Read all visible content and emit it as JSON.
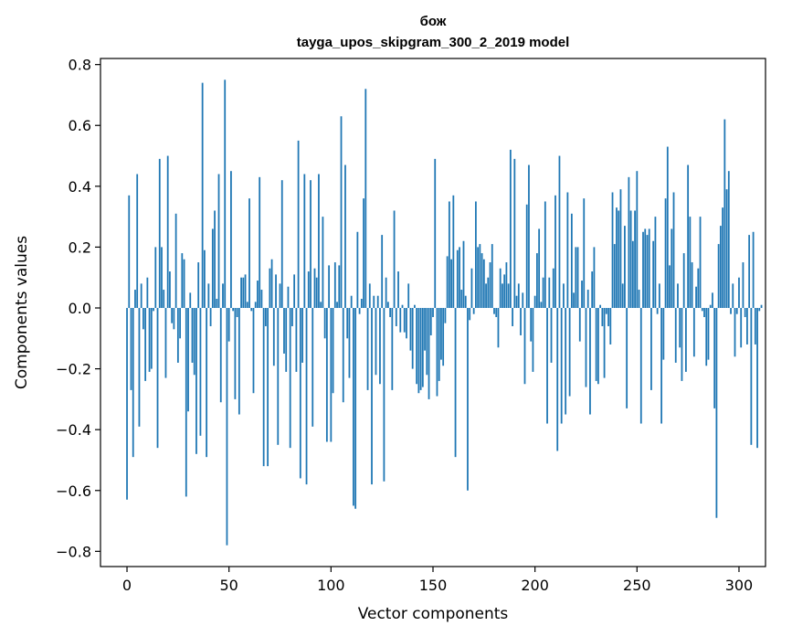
{
  "chart_data": {
    "type": "bar",
    "title": "бож",
    "subtitle": "tayga_upos_skipgram_300_2_2019 model",
    "xlabel": "Vector components",
    "ylabel": "Components values",
    "xlim": [
      -13,
      313
    ],
    "ylim": [
      -0.85,
      0.82
    ],
    "xticks": [
      0,
      50,
      100,
      150,
      200,
      250,
      300
    ],
    "yticks": [
      -0.8,
      -0.6,
      -0.4,
      -0.2,
      0.0,
      0.2,
      0.4,
      0.6,
      0.8
    ],
    "ytick_labels": [
      "−0.8",
      "−0.6",
      "−0.4",
      "−0.2",
      "0.0",
      "0.2",
      "0.4",
      "0.6",
      "0.8"
    ],
    "xtick_labels": [
      "0",
      "50",
      "100",
      "150",
      "200",
      "250",
      "300"
    ],
    "grid": false,
    "bar_color": "#1f77b4",
    "values": [
      -0.63,
      0.37,
      -0.27,
      -0.49,
      0.06,
      0.44,
      -0.39,
      0.08,
      -0.07,
      -0.24,
      0.1,
      -0.21,
      -0.2,
      -0.01,
      0.2,
      -0.46,
      0.49,
      0.2,
      0.06,
      -0.23,
      0.5,
      0.12,
      -0.05,
      -0.07,
      0.31,
      -0.18,
      -0.1,
      0.18,
      0.16,
      -0.62,
      -0.34,
      0.05,
      -0.18,
      -0.22,
      -0.48,
      0.15,
      -0.42,
      0.74,
      0.19,
      -0.49,
      0.08,
      -0.06,
      0.26,
      0.32,
      0.03,
      0.44,
      -0.31,
      0.08,
      0.75,
      -0.78,
      -0.11,
      0.45,
      -0.01,
      -0.3,
      -0.03,
      -0.35,
      0.1,
      0.1,
      0.11,
      0.02,
      0.36,
      -0.01,
      -0.28,
      0.02,
      0.09,
      0.43,
      0.06,
      -0.52,
      -0.06,
      -0.52,
      0.13,
      0.16,
      -0.19,
      0.11,
      -0.45,
      0.08,
      0.42,
      -0.15,
      -0.21,
      0.07,
      -0.46,
      -0.06,
      0.11,
      -0.21,
      0.55,
      -0.56,
      -0.18,
      0.44,
      -0.58,
      0.12,
      0.42,
      -0.39,
      0.13,
      0.1,
      0.44,
      0.02,
      0.3,
      -0.1,
      -0.44,
      0.14,
      -0.44,
      -0.28,
      0.15,
      0.02,
      0.14,
      0.63,
      -0.31,
      0.47,
      -0.1,
      -0.23,
      0.04,
      -0.65,
      -0.66,
      0.25,
      -0.02,
      0.03,
      0.36,
      0.72,
      -0.27,
      0.08,
      -0.58,
      0.04,
      -0.22,
      0.04,
      -0.25,
      0.24,
      -0.57,
      0.1,
      0.02,
      -0.03,
      -0.27,
      0.32,
      -0.06,
      0.12,
      -0.08,
      0.01,
      -0.08,
      -0.1,
      0.08,
      -0.14,
      -0.2,
      0.01,
      -0.25,
      -0.28,
      -0.27,
      -0.26,
      -0.14,
      -0.22,
      -0.3,
      -0.09,
      -0.03,
      0.49,
      -0.29,
      -0.24,
      -0.17,
      -0.19,
      -0.05,
      0.17,
      0.35,
      0.16,
      0.37,
      -0.49,
      0.19,
      0.2,
      0.06,
      0.22,
      0.04,
      -0.6,
      -0.04,
      0.13,
      -0.02,
      0.35,
      0.2,
      0.21,
      0.18,
      0.16,
      0.08,
      0.1,
      0.15,
      0.21,
      -0.02,
      -0.03,
      -0.13,
      0.13,
      0.08,
      0.11,
      0.15,
      0.08,
      0.52,
      -0.06,
      0.49,
      0.04,
      0.08,
      -0.09,
      0.05,
      -0.25,
      0.34,
      0.47,
      -0.11,
      -0.21,
      0.04,
      0.18,
      0.26,
      0.02,
      0.1,
      0.35,
      -0.38,
      0.1,
      -0.18,
      0.13,
      0.37,
      -0.47,
      0.5,
      -0.38,
      0.08,
      -0.35,
      0.38,
      -0.29,
      0.31,
      0.05,
      0.2,
      0.2,
      -0.11,
      0.09,
      0.36,
      -0.26,
      0.06,
      -0.35,
      0.12,
      0.2,
      -0.24,
      -0.25,
      0.01,
      -0.06,
      -0.23,
      -0.02,
      -0.06,
      -0.12,
      0.38,
      0.21,
      0.33,
      0.32,
      0.39,
      0.08,
      0.27,
      -0.33,
      0.43,
      0.32,
      0.22,
      0.32,
      0.45,
      0.06,
      -0.38,
      0.25,
      0.26,
      0.24,
      0.26,
      -0.27,
      0.22,
      0.3,
      -0.02,
      0.08,
      -0.38,
      -0.17,
      0.36,
      0.53,
      0.14,
      0.26,
      0.38,
      -0.18,
      0.08,
      -0.13,
      -0.24,
      0.18,
      -0.21,
      0.47,
      0.3,
      0.15,
      -0.16,
      0.07,
      0.13,
      0.3,
      -0.01,
      -0.03,
      -0.19,
      -0.17,
      0.01,
      0.05,
      -0.33,
      -0.69,
      0.21,
      0.27,
      0.33,
      0.62,
      0.39,
      0.45,
      -0.02,
      0.08,
      -0.16,
      -0.02,
      0.1,
      -0.13,
      0.15,
      -0.03,
      -0.12,
      0.24,
      -0.45,
      0.25,
      -0.12,
      -0.46,
      -0.01,
      0.01
    ]
  }
}
